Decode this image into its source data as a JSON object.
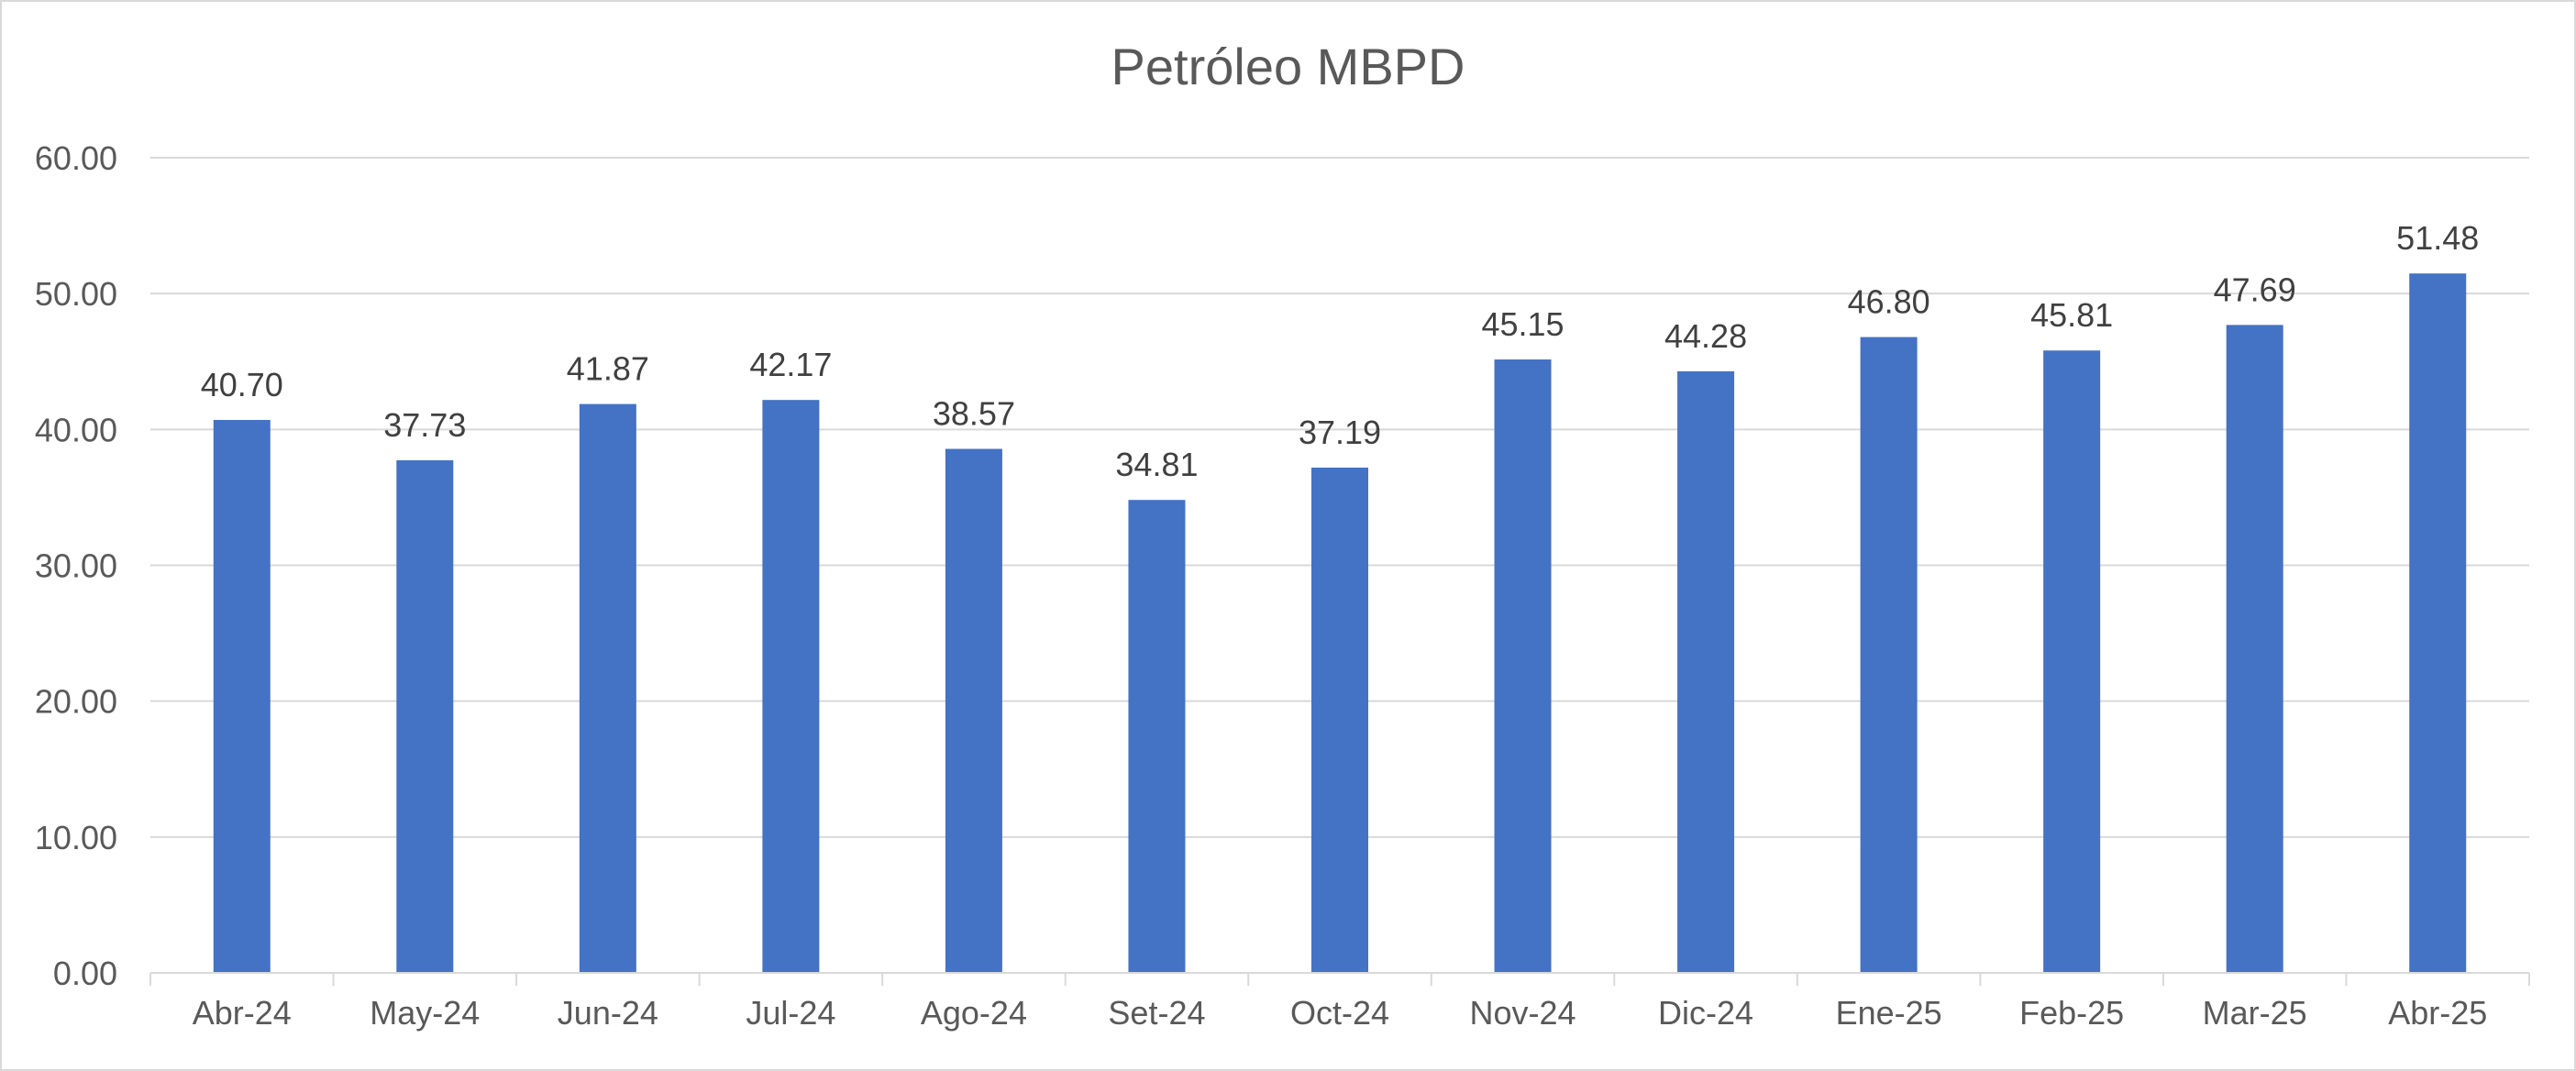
{
  "chart_data": {
    "type": "bar",
    "title": "Petróleo MBPD",
    "xlabel": "",
    "ylabel": "",
    "categories": [
      "Abr-24",
      "May-24",
      "Jun-24",
      "Jul-24",
      "Ago-24",
      "Set-24",
      "Oct-24",
      "Nov-24",
      "Dic-24",
      "Ene-25",
      "Feb-25",
      "Mar-25",
      "Abr-25"
    ],
    "values": [
      40.7,
      37.73,
      41.87,
      42.17,
      38.57,
      34.81,
      37.19,
      45.15,
      44.28,
      46.8,
      45.81,
      47.69,
      51.48
    ],
    "data_labels": [
      "40.70",
      "37.73",
      "41.87",
      "42.17",
      "38.57",
      "34.81",
      "37.19",
      "45.15",
      "44.28",
      "46.80",
      "45.81",
      "47.69",
      "51.48"
    ],
    "ylim": [
      0,
      60
    ],
    "yticks": [
      "0.00",
      "10.00",
      "20.00",
      "30.00",
      "40.00",
      "50.00",
      "60.00"
    ],
    "grid": true,
    "legend": "none",
    "bar_color": "#4472C4",
    "gridline_color": "#d9d9d9"
  }
}
